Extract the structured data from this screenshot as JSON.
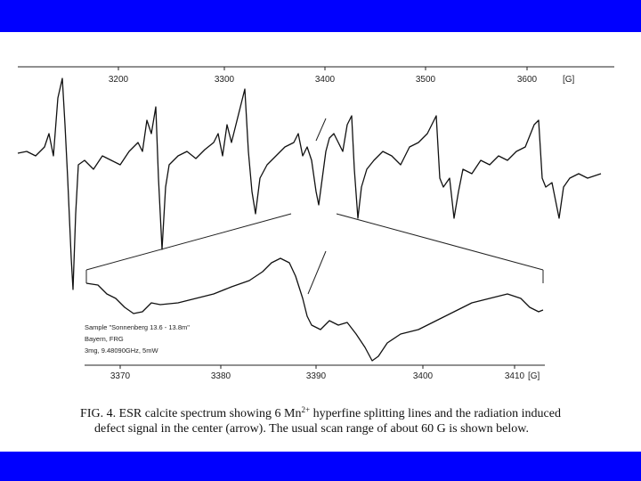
{
  "top_axis": {
    "ticks": [
      "3200",
      "3300",
      "3400",
      "3500",
      "3600"
    ],
    "unit": "[G]"
  },
  "bottom_axis": {
    "ticks": [
      "3370",
      "3380",
      "3390",
      "3400",
      "3410"
    ],
    "unit": "[G]"
  },
  "sample_info": [
    "Sample \"Sonnenberg 13.6 - 13.8m\"",
    "Bayern, FRG",
    "3mg, 9.48090GHz, 5mW"
  ],
  "caption": {
    "line1_start": "FIG. 4. ESR calcite spectrum showing 6 Mn",
    "superscript": "2+",
    "line1_end": " hyperfine splitting lines and the radiation induced",
    "line2": "defect signal in the center (arrow). The usual scan range of about 60 G is shown below."
  }
}
